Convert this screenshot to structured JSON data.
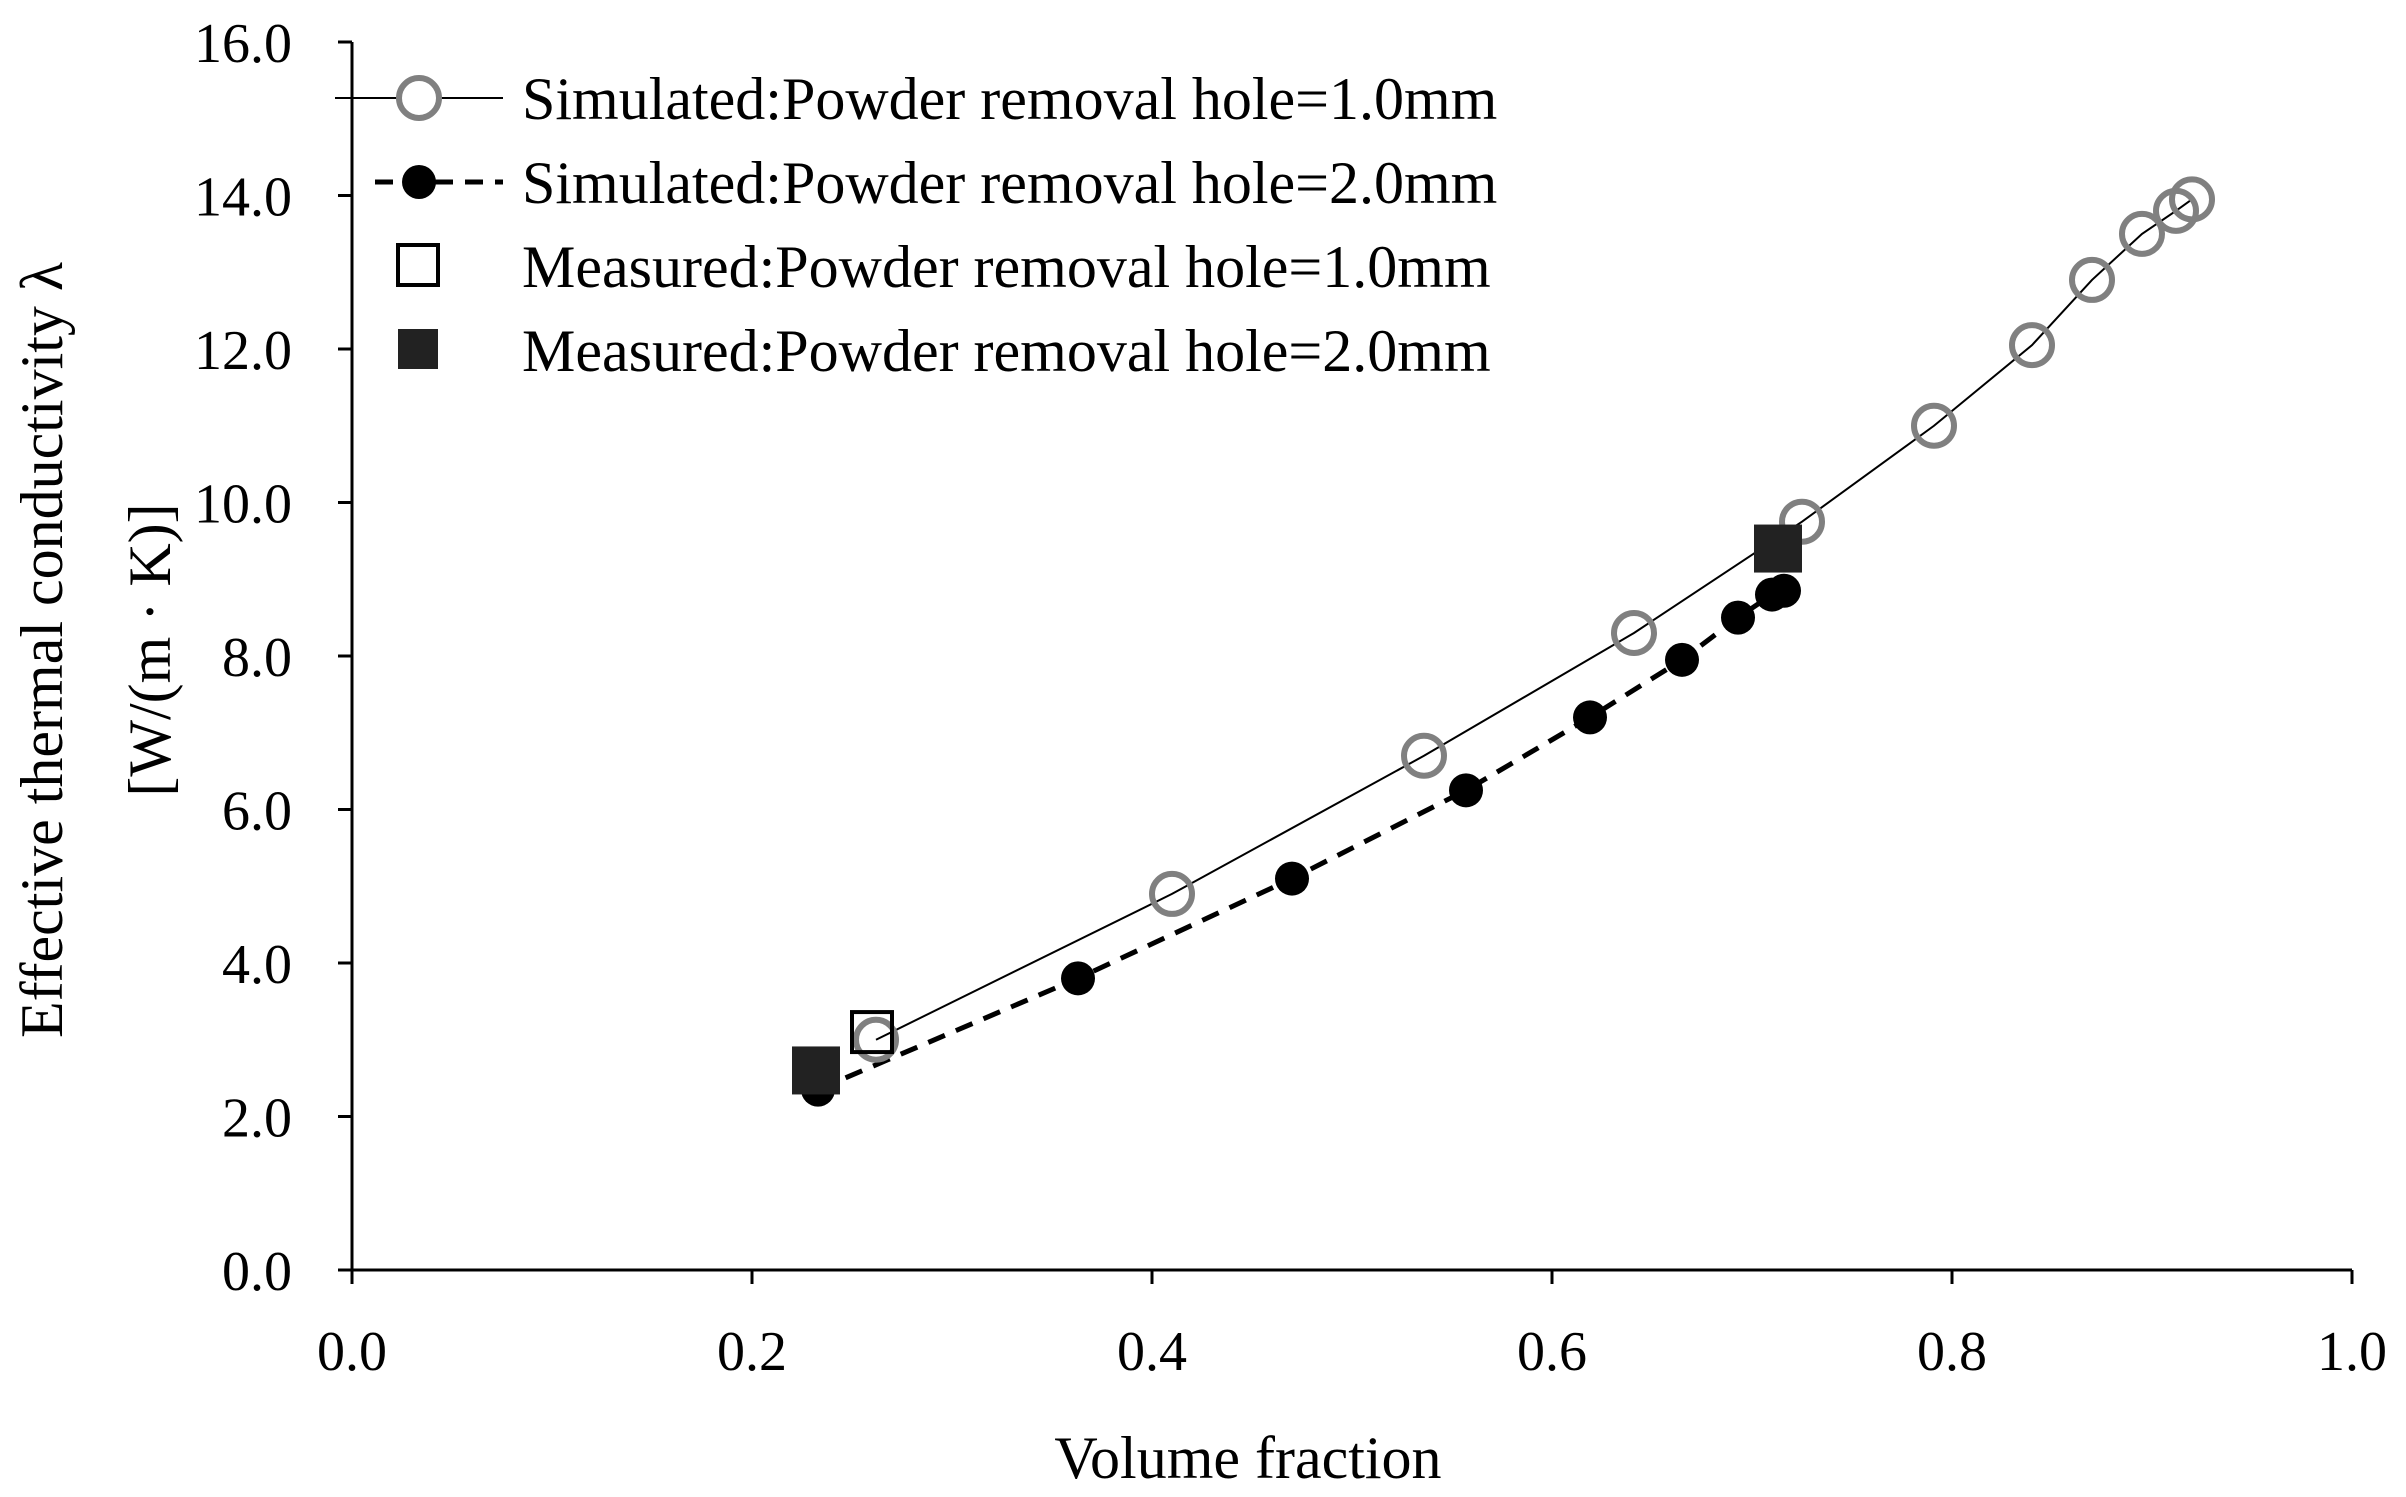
{
  "chart_data": {
    "type": "scatter",
    "title": "",
    "xlabel": "Volume fraction",
    "ylabel_line1": "Effective thermal conductivity λ",
    "ylabel_line2": "[W/(m · K)]",
    "xlim": [
      0.0,
      1.0
    ],
    "ylim": [
      0.0,
      16.0
    ],
    "x_ticks": [
      "0.0",
      "0.2",
      "0.4",
      "0.6",
      "0.8",
      "1.0"
    ],
    "y_ticks": [
      "0.0",
      "2.0",
      "4.0",
      "6.0",
      "8.0",
      "10.0",
      "12.0",
      "14.0",
      "16.0"
    ],
    "grid": false,
    "legend_position": "top-left",
    "series": [
      {
        "name": "Simulated:Powder removal hole=1.0mm",
        "marker": "open-circle",
        "line": "solid",
        "x": [
          0.262,
          0.41,
          0.536,
          0.641,
          0.725,
          0.791,
          0.84,
          0.87,
          0.895,
          0.912,
          0.92
        ],
        "y": [
          3.0,
          4.9,
          6.7,
          8.3,
          9.75,
          11.0,
          12.05,
          12.9,
          13.5,
          13.8,
          13.95
        ]
      },
      {
        "name": "Simulated:Powder removal hole=2.0mm",
        "marker": "filled-circle",
        "line": "dashed",
        "x": [
          0.233,
          0.363,
          0.47,
          0.557,
          0.619,
          0.665,
          0.693,
          0.71,
          0.716
        ],
        "y": [
          2.35,
          3.8,
          5.1,
          6.25,
          7.2,
          7.95,
          8.5,
          8.8,
          8.85
        ]
      },
      {
        "name": "Measured:Powder removal hole=1.0mm",
        "marker": "open-square",
        "line": "none",
        "x": [
          0.26
        ],
        "y": [
          3.1
        ]
      },
      {
        "name": "Measured:Powder removal hole=2.0mm",
        "marker": "filled-square",
        "line": "none",
        "x": [
          0.232,
          0.713
        ],
        "y": [
          2.6,
          9.4
        ]
      }
    ]
  },
  "colors": {
    "open_circle_stroke": "#808080",
    "filled_marker": "#000000",
    "filled_square": "#222222",
    "axis": "#000000"
  }
}
